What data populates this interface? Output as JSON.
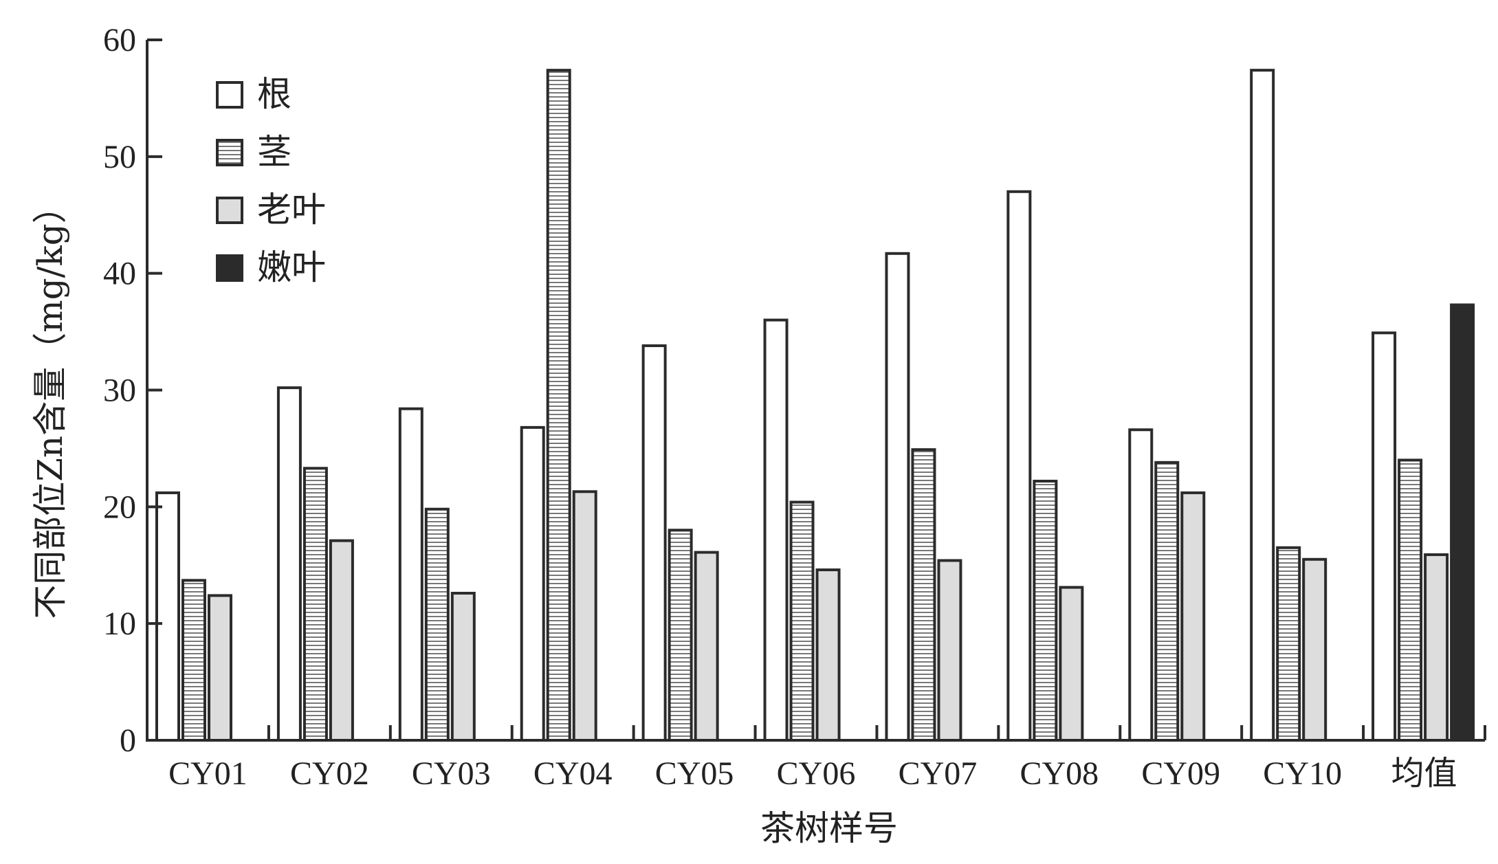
{
  "chart_data": {
    "type": "bar",
    "title": "",
    "xlabel": "茶树样号",
    "ylabel": "不同部位Zn含量（mg/kg）",
    "ylim": [
      0,
      60
    ],
    "yticks": [
      "0",
      "10",
      "20",
      "30",
      "40",
      "50",
      "60"
    ],
    "grid": false,
    "legend_position": "top-left",
    "categories": [
      "CY01",
      "CY02",
      "CY03",
      "CY04",
      "CY05",
      "CY06",
      "CY07",
      "CY08",
      "CY09",
      "CY10",
      "均值"
    ],
    "series": [
      {
        "name": "根",
        "fill": "#ffffff",
        "pattern": "none",
        "values": [
          21.2,
          30.2,
          28.4,
          26.8,
          33.8,
          36.0,
          41.7,
          47.0,
          26.6,
          57.4,
          34.9
        ]
      },
      {
        "name": "茎",
        "fill": "#ffffff",
        "pattern": "horizontal-lines",
        "values": [
          13.7,
          23.3,
          19.8,
          57.4,
          18.0,
          20.4,
          24.9,
          22.2,
          23.8,
          16.5,
          24.0
        ]
      },
      {
        "name": "老叶",
        "fill": "#dddddd",
        "pattern": "none",
        "values": [
          12.4,
          17.1,
          12.6,
          21.3,
          16.1,
          14.6,
          15.4,
          13.1,
          21.2,
          15.5,
          15.9
        ]
      },
      {
        "name": "嫩叶",
        "fill": "#2b2b2b",
        "pattern": "none",
        "values": [
          null,
          null,
          null,
          null,
          null,
          null,
          null,
          null,
          null,
          null,
          37.3
        ]
      }
    ],
    "colors": {
      "stroke": "#2b2b2b",
      "hatch": "#555555"
    }
  }
}
